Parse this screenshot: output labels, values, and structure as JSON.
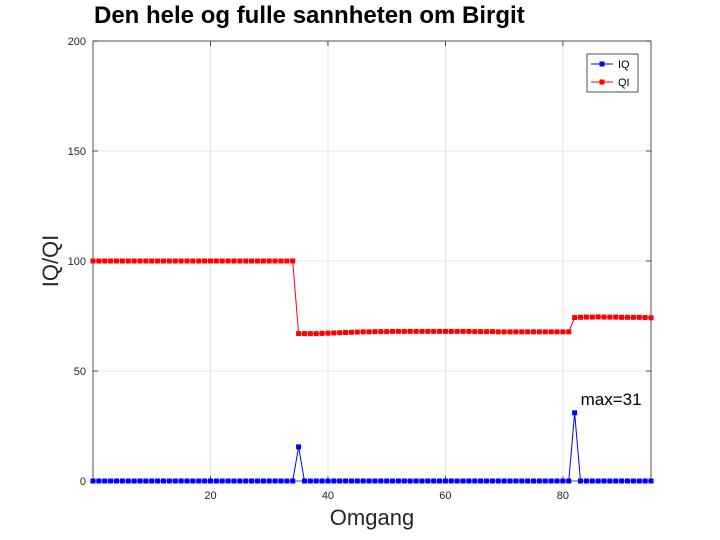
{
  "chart_data": {
    "type": "line",
    "title": "Den hele og fulle sannheten om Birgit",
    "xlabel": "Omgang",
    "ylabel": "IQ/QI",
    "xlim": [
      0,
      95
    ],
    "ylim": [
      0,
      200
    ],
    "xticks": [
      20,
      40,
      60,
      80
    ],
    "yticks": [
      0,
      50,
      100,
      150,
      200
    ],
    "grid": true,
    "legend_position": "top-right",
    "x": [
      0,
      1,
      2,
      3,
      4,
      5,
      6,
      7,
      8,
      9,
      10,
      11,
      12,
      13,
      14,
      15,
      16,
      17,
      18,
      19,
      20,
      21,
      22,
      23,
      24,
      25,
      26,
      27,
      28,
      29,
      30,
      31,
      32,
      33,
      34,
      35,
      36,
      37,
      38,
      39,
      40,
      41,
      42,
      43,
      44,
      45,
      46,
      47,
      48,
      49,
      50,
      51,
      52,
      53,
      54,
      55,
      56,
      57,
      58,
      59,
      60,
      61,
      62,
      63,
      64,
      65,
      66,
      67,
      68,
      69,
      70,
      71,
      72,
      73,
      74,
      75,
      76,
      77,
      78,
      79,
      80,
      81,
      82,
      83,
      84,
      85,
      86,
      87,
      88,
      89,
      90,
      91,
      92,
      93,
      94,
      95
    ],
    "series": [
      {
        "name": "IQ",
        "color": "#0000ff",
        "values": [
          0,
          0,
          0,
          0,
          0,
          0,
          0,
          0,
          0,
          0,
          0,
          0,
          0,
          0,
          0,
          0,
          0,
          0,
          0,
          0,
          0,
          0,
          0,
          0,
          0,
          0,
          0,
          0,
          0,
          0,
          0,
          0,
          0,
          0,
          0,
          15.5,
          0,
          0,
          0,
          0,
          0,
          0,
          0,
          0,
          0,
          0,
          0,
          0,
          0,
          0,
          0,
          0,
          0,
          0,
          0,
          0,
          0,
          0,
          0,
          0,
          0,
          0,
          0,
          0,
          0,
          0,
          0,
          0,
          0,
          0,
          0,
          0,
          0,
          0,
          0,
          0,
          0,
          0,
          0,
          0,
          0,
          0,
          31,
          0,
          0,
          0,
          0,
          0,
          0,
          0,
          0,
          0,
          0,
          0,
          0,
          0
        ]
      },
      {
        "name": "QI",
        "color": "#ff0000",
        "values": [
          100,
          100,
          100,
          100,
          100,
          100,
          100,
          100,
          100,
          100,
          100,
          100,
          100,
          100,
          100,
          100,
          100,
          100,
          100,
          100,
          100,
          100,
          100,
          100,
          100,
          100,
          100,
          100,
          100,
          100,
          100,
          100,
          100,
          100,
          100,
          67,
          67,
          67,
          67,
          67.1,
          67.2,
          67.3,
          67.4,
          67.5,
          67.6,
          67.7,
          67.8,
          67.8,
          67.9,
          67.9,
          67.9,
          68,
          68,
          68,
          68,
          68,
          68,
          68,
          68,
          68,
          68,
          68,
          68,
          68,
          68,
          67.9,
          67.9,
          67.9,
          67.9,
          67.8,
          67.8,
          67.8,
          67.8,
          67.8,
          67.8,
          67.8,
          67.8,
          67.8,
          67.8,
          67.8,
          67.8,
          67.8,
          74.3,
          74.4,
          74.5,
          74.5,
          74.6,
          74.5,
          74.5,
          74.5,
          74.4,
          74.4,
          74.4,
          74.4,
          74.3,
          74.2
        ]
      }
    ],
    "annotations": [
      {
        "text": "max=31",
        "x": 82,
        "y": 31
      }
    ]
  }
}
